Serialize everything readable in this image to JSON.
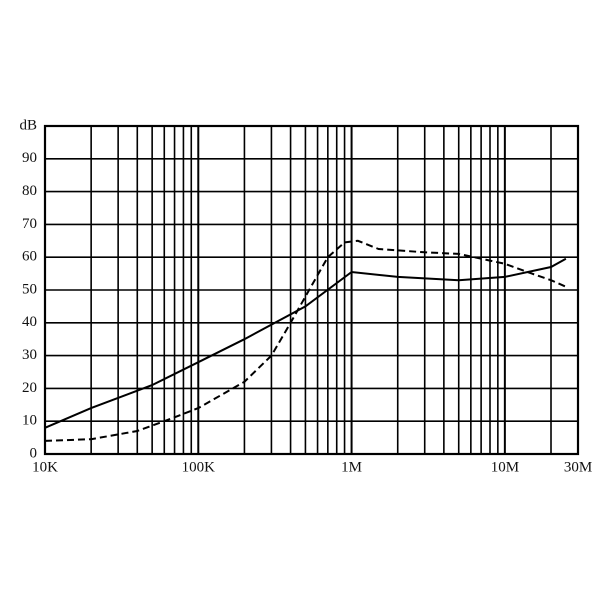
{
  "chart_data": {
    "type": "line",
    "xscale": "log",
    "grid": true,
    "xlim": [
      10000,
      30000000
    ],
    "ylim": [
      0,
      100
    ],
    "xticks": [
      {
        "value": 10000,
        "label": "10K"
      },
      {
        "value": 100000,
        "label": "100K"
      },
      {
        "value": 1000000,
        "label": "1M"
      },
      {
        "value": 10000000,
        "label": "10M"
      },
      {
        "value": 30000000,
        "label": "30M"
      }
    ],
    "xgrid": [
      20000,
      30000,
      40000,
      50000,
      60000,
      70000,
      80000,
      90000,
      200000,
      300000,
      400000,
      500000,
      600000,
      700000,
      800000,
      900000,
      2000000,
      3000000,
      4000000,
      5000000,
      6000000,
      7000000,
      8000000,
      9000000,
      20000000
    ],
    "yticks": [
      0,
      10,
      20,
      30,
      40,
      50,
      60,
      70,
      80,
      90,
      {
        "value": 100,
        "label": "dB"
      }
    ],
    "series": [
      {
        "color": "#000000",
        "dash": "solid",
        "x": [
          10000,
          20000,
          50000,
          100000,
          200000,
          500000,
          1000000,
          2000000,
          5000000,
          10000000,
          20000000,
          25000000
        ],
        "values": [
          8,
          14,
          21,
          28,
          35,
          45,
          55.5,
          54,
          53,
          54,
          57,
          59.5
        ]
      },
      {
        "color": "#000000",
        "dash": "dashed",
        "x": [
          10000,
          20000,
          40000,
          60000,
          100000,
          200000,
          300000,
          400000,
          500000,
          700000,
          900000,
          1100000,
          1500000,
          3000000,
          5000000,
          10000000,
          15000000,
          20000000,
          25000000
        ],
        "values": [
          4,
          4.5,
          7,
          10,
          14,
          22,
          30,
          40,
          48,
          60,
          64.5,
          65,
          62.5,
          61.5,
          61,
          58,
          55,
          53,
          51
        ]
      }
    ]
  }
}
